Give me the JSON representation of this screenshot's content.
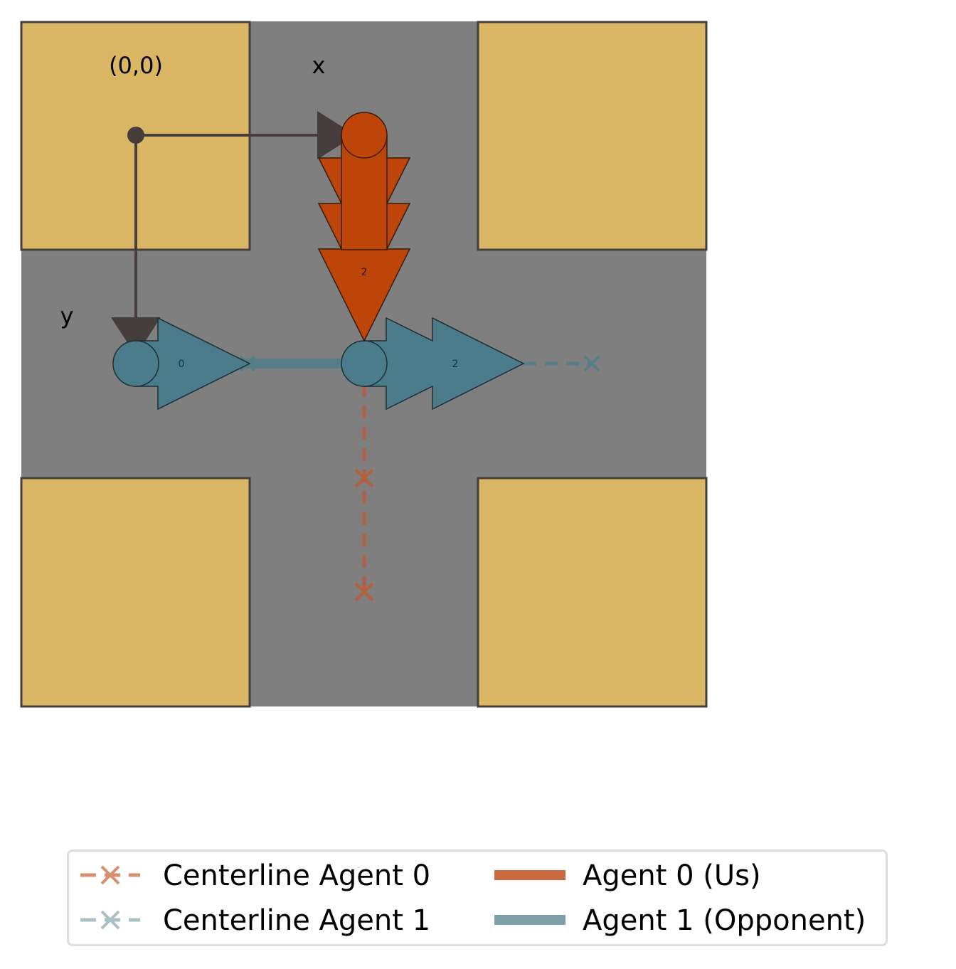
{
  "labels": {
    "origin": "(0,0)",
    "x_axis": "x",
    "y_axis": "y",
    "agent0_id": "2",
    "agent1_start_id": "0",
    "agent1_current_id": "2"
  },
  "legend": {
    "centerline_agent0": "Centerline Agent 0",
    "centerline_agent1": "Centerline Agent 1",
    "agent0": "Agent 0 (Us)",
    "agent1": "Agent 1 (Opponent)"
  },
  "colors": {
    "road": "#7f7f7f",
    "block": "#dab563",
    "block_edge": "#463e3d",
    "agent0": "#bd450a",
    "agent0_legend": "#c96a40",
    "agent0_centerline": "#b85f3b",
    "agent1": "#4a7c8b",
    "agent1_legend": "#7c9fa8",
    "agent1_centerline": "#537d8a",
    "axis": "#463e3d"
  }
}
